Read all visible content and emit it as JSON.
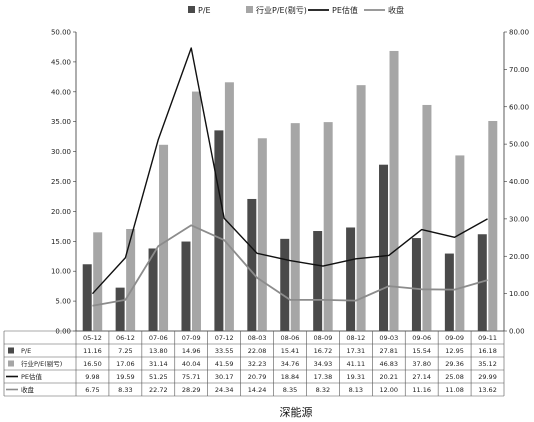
{
  "chart_data": {
    "type": "bar",
    "title": "",
    "caption": "深能源",
    "categories": [
      "05-12",
      "06-12",
      "07-06",
      "07-09",
      "07-12",
      "08-03",
      "08-06",
      "08-09",
      "08-12",
      "09-03",
      "09-06",
      "09-09",
      "09-11"
    ],
    "series": [
      {
        "name": "P/E",
        "kind": "bar",
        "axis": "left",
        "color": "#4a4a4a",
        "values": [
          11.16,
          7.25,
          13.8,
          14.96,
          33.55,
          22.08,
          15.41,
          16.72,
          17.31,
          27.81,
          15.54,
          12.95,
          16.18
        ],
        "labels": [
          "11.16",
          "7.25",
          "13.80",
          "14.96",
          "33.55",
          "22.08",
          "15.41",
          "16.72",
          "17.31",
          "27.81",
          "15.54",
          "12.95",
          "16.18"
        ]
      },
      {
        "name": "行业P/E(剔亏)",
        "kind": "bar",
        "axis": "left",
        "color": "#a6a6a6",
        "values": [
          16.5,
          17.06,
          31.14,
          40.04,
          41.59,
          32.23,
          34.76,
          34.93,
          41.11,
          46.83,
          37.8,
          29.36,
          35.12
        ],
        "labels": [
          "16.50",
          "17.06",
          "31.14",
          "40.04",
          "41.59",
          "32.23",
          "34.76",
          "34.93",
          "41.11",
          "46.83",
          "37.80",
          "29.36",
          "35.12"
        ]
      },
      {
        "name": "PE估值",
        "kind": "line",
        "axis": "right",
        "color": "#111111",
        "values": [
          9.98,
          19.59,
          51.25,
          75.71,
          30.17,
          20.79,
          18.84,
          17.38,
          19.31,
          20.21,
          27.14,
          25.08,
          29.99
        ],
        "labels": [
          "9.98",
          "19.59",
          "51.25",
          "75.71",
          "30.17",
          "20.79",
          "18.84",
          "17.38",
          "19.31",
          "20.21",
          "27.14",
          "25.08",
          "29.99"
        ]
      },
      {
        "name": "收盘",
        "kind": "line",
        "axis": "right",
        "color": "#8c8c8c",
        "values": [
          6.75,
          8.33,
          22.72,
          28.29,
          24.34,
          14.24,
          8.35,
          8.32,
          8.13,
          12.0,
          11.16,
          11.08,
          13.62
        ],
        "labels": [
          "6.75",
          "8.33",
          "22.72",
          "28.29",
          "24.34",
          "14.24",
          "8.35",
          "8.32",
          "8.13",
          "12.00",
          "11.16",
          "11.08",
          "13.62"
        ]
      }
    ],
    "y_left": {
      "min": 0,
      "max": 50,
      "step": 5,
      "tick_labels": [
        "0.00",
        "5.00",
        "10.00",
        "15.00",
        "20.00",
        "25.00",
        "30.00",
        "35.00",
        "40.00",
        "45.00",
        "50.00"
      ]
    },
    "y_right": {
      "min": 0,
      "max": 80,
      "step": 10,
      "tick_labels": [
        "0.00",
        "10.00",
        "20.00",
        "30.00",
        "40.00",
        "50.00",
        "60.00",
        "70.00",
        "80.00"
      ]
    },
    "legend_position": "top",
    "grid": false,
    "data_table": true
  }
}
